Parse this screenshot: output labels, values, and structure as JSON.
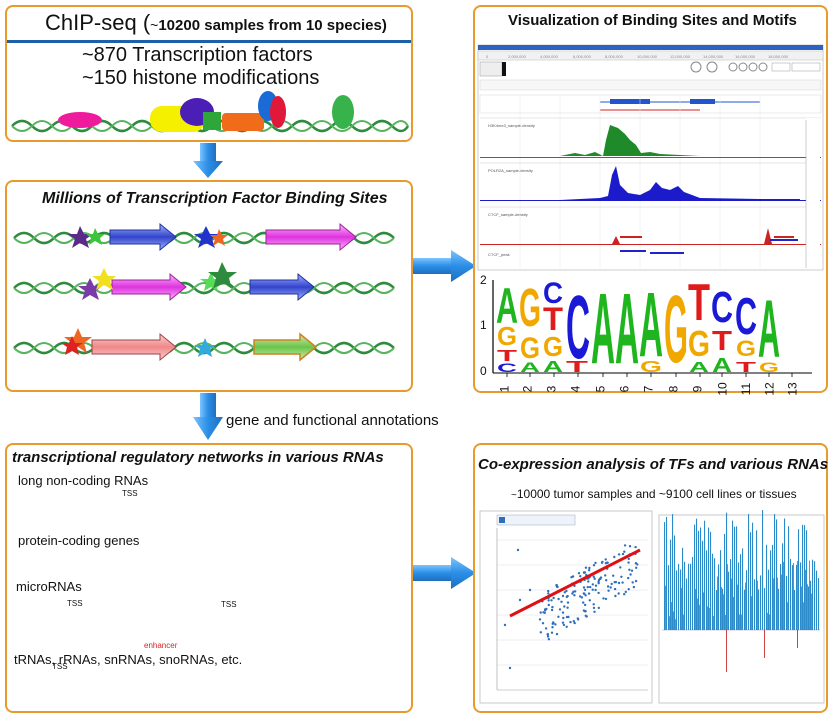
{
  "chipseq": {
    "title_main": "ChIP-seq (",
    "title_tilde": "~",
    "title_bold": "10200 samples from 10 species)",
    "line1": "~870 Transcription factors",
    "line2": "~150 histone modifications"
  },
  "tfbs": {
    "title": "Millions of Transcription Factor Binding Sites"
  },
  "annot_label": "gene and functional annotations",
  "networks": {
    "title": "transcriptional regulatory networks in various RNAs",
    "lncrna": "long non-coding RNAs",
    "protein": "protein-coding genes",
    "microrna": "microRNAs",
    "trna": "tRNAs, rRNAs, snRNAs, snoRNAs, etc.",
    "tss": "TSS",
    "enhancer": "enhancer"
  },
  "visual": {
    "title": "Visualization of  Binding Sites and  Motifs",
    "track_labels": [
      "H3K4me3_sample-density",
      "POLR2A_sample-density",
      "CTCF_sample-density",
      "CTCF_peak"
    ],
    "motif_letters": [
      "A",
      "G",
      "T",
      "C",
      "A",
      "A",
      "A",
      "G",
      "T",
      "C",
      "C",
      "A",
      "G"
    ],
    "motif_positions": [
      "1",
      "2",
      "3",
      "4",
      "5",
      "6",
      "7",
      "8",
      "9",
      "10",
      "11",
      "12",
      "13"
    ],
    "motif_yticks": [
      "2",
      "1",
      "0"
    ]
  },
  "coexp": {
    "title": "Co-expression analysis of TFs and various RNAs",
    "subtitle_tilde": "~",
    "subtitle": "10000 tumor samples and  ~9100 cell lines or tissues"
  },
  "colors": {
    "panel_border": "#e89a2c",
    "arrow_blue": "#2b8ee6",
    "dna_green": "#2e8b3d",
    "motif_A": "#1eb51e",
    "motif_C": "#1a1ad6",
    "motif_G": "#f0a800",
    "motif_T": "#e01b1b"
  }
}
